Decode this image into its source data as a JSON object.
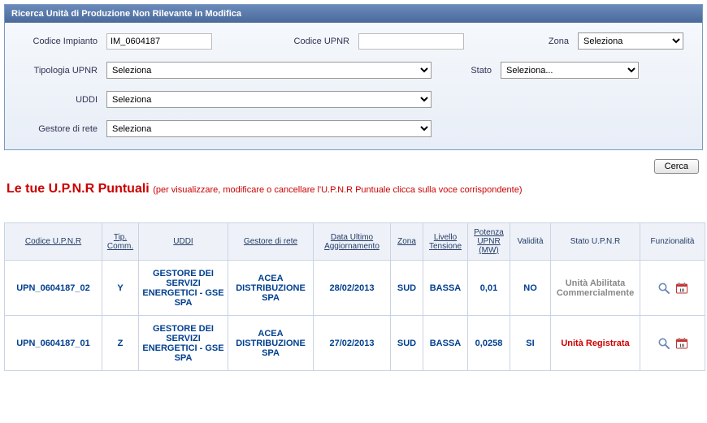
{
  "panel": {
    "title": "Ricerca Unità di Produzione Non Rilevante in Modifica",
    "labels": {
      "codice_impianto": "Codice Impianto",
      "codice_upnr": "Codice UPNR",
      "zona": "Zona",
      "tipologia_upnr": "Tipologia UPNR",
      "stato": "Stato",
      "uddi": "UDDI",
      "gestore_rete": "Gestore di rete"
    },
    "values": {
      "codice_impianto": "IM_0604187",
      "codice_upnr": "",
      "zona": "Seleziona",
      "tipologia_upnr": "Seleziona",
      "stato": "Seleziona...",
      "uddi": "Seleziona",
      "gestore_rete": "Seleziona"
    },
    "cerca": "Cerca"
  },
  "section": {
    "title": "Le tue U.P.N.R Puntuali",
    "subtitle": "(per visualizzare, modificare o cancellare l'U.P.N.R Puntuale clicca sulla voce corrispondente)"
  },
  "grid": {
    "headers": {
      "codice": "Codice U.P.N.R",
      "tip": "Tip. Comm.",
      "uddi": "UDDI",
      "gestore": "Gestore di rete",
      "data": "Data Ultimo Aggiornamento",
      "zona": "Zona",
      "tensione": "Livello Tensione",
      "potenza": "Potenza UPNR (MW)",
      "validita": "Validità",
      "stato": "Stato U.P.N.R",
      "funz": "Funzionalità"
    },
    "rows": [
      {
        "codice": "UPN_0604187_02",
        "tip": "Y",
        "uddi": "GESTORE DEI SERVIZI ENERGETICI - GSE SPA",
        "gestore": "ACEA DISTRIBUZIONE SPA",
        "data": "28/02/2013",
        "zona": "SUD",
        "tensione": "BASSA",
        "potenza": "0,01",
        "validita": "NO",
        "stato": "Unità Abilitata Commercialmente",
        "stato_class": "stato-gray"
      },
      {
        "codice": "UPN_0604187_01",
        "tip": "Z",
        "uddi": "GESTORE DEI SERVIZI ENERGETICI - GSE SPA",
        "gestore": "ACEA DISTRIBUZIONE SPA",
        "data": "27/02/2013",
        "zona": "SUD",
        "tensione": "BASSA",
        "potenza": "0,0258",
        "validita": "SI",
        "stato": "Unità Registrata",
        "stato_class": "stato-red"
      }
    ]
  }
}
